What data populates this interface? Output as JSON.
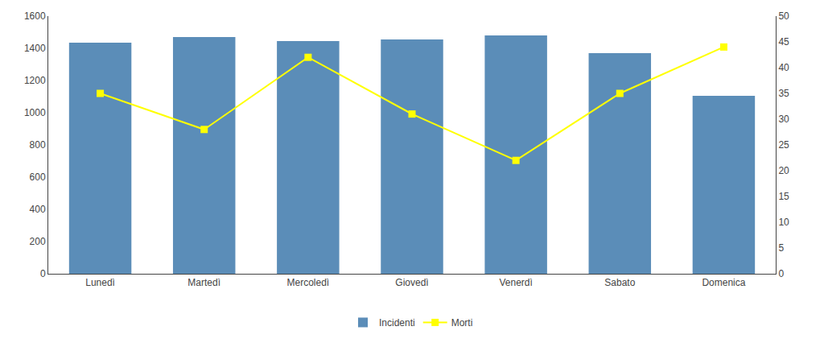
{
  "chart_data": {
    "type": "bar",
    "categories": [
      "Lunedì",
      "Martedì",
      "Mercoledì",
      "Giovedì",
      "Venerdì",
      "Sabato",
      "Domenica"
    ],
    "series": [
      {
        "name": "Incidenti",
        "type": "bar",
        "color": "#5b8db8",
        "values": [
          1435,
          1470,
          1445,
          1455,
          1480,
          1370,
          1105
        ]
      },
      {
        "name": "Morti",
        "type": "line",
        "color": "#ffff00",
        "marker": "square",
        "axis": "y2",
        "values": [
          35,
          28,
          42,
          31,
          22,
          35,
          44
        ]
      }
    ],
    "ylim": [
      0,
      1600
    ],
    "yticks": [
      0,
      200,
      400,
      600,
      800,
      1000,
      1200,
      1400,
      1600
    ],
    "y2lim": [
      0,
      50
    ],
    "y2ticks": [
      0,
      5,
      10,
      15,
      20,
      25,
      30,
      35,
      40,
      45,
      50
    ],
    "grid": false,
    "legend": "bottom"
  }
}
